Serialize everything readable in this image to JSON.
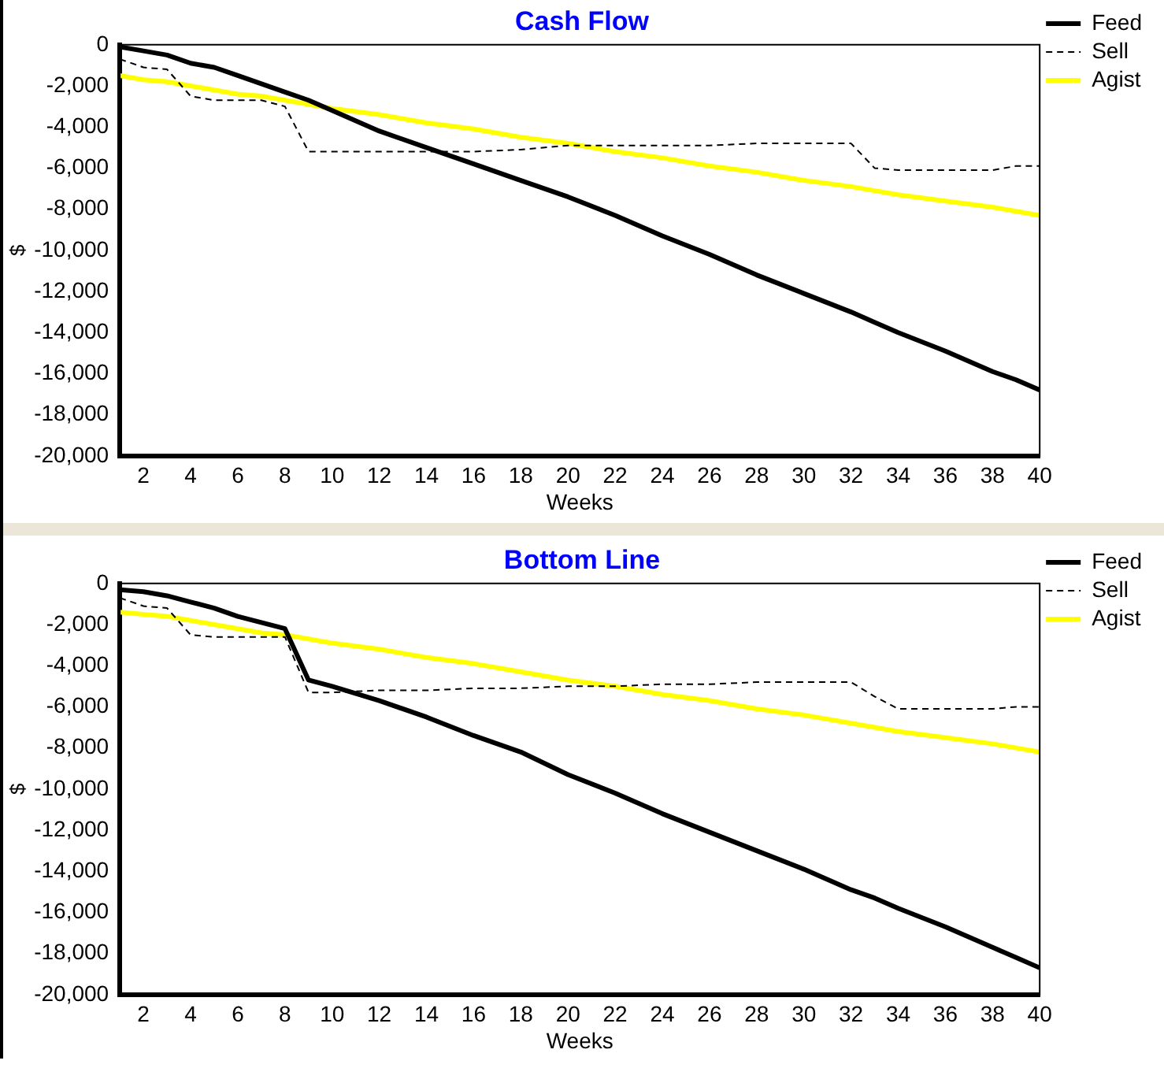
{
  "chart_data": [
    {
      "type": "line",
      "title": "Cash Flow",
      "xlabel": "Weeks",
      "ylabel": "$",
      "x": [
        1,
        2,
        3,
        4,
        5,
        6,
        7,
        8,
        9,
        10,
        12,
        14,
        16,
        18,
        20,
        22,
        24,
        26,
        28,
        30,
        32,
        33,
        34,
        36,
        38,
        39,
        40
      ],
      "xlim": [
        1,
        40
      ],
      "xticks": [
        2,
        4,
        6,
        8,
        10,
        12,
        14,
        16,
        18,
        20,
        22,
        24,
        26,
        28,
        30,
        32,
        34,
        36,
        38,
        40
      ],
      "ylim": [
        -20000,
        0
      ],
      "yticks": [
        {
          "value": -20000,
          "label": "-20,000"
        },
        {
          "value": -18000,
          "label": "-18,000"
        },
        {
          "value": -16000,
          "label": "-16,000"
        },
        {
          "value": -14000,
          "label": "-14,000"
        },
        {
          "value": -12000,
          "label": "-12,000"
        },
        {
          "value": -10000,
          "label": "-10,000"
        },
        {
          "value": -8000,
          "label": "-8,000"
        },
        {
          "value": -6000,
          "label": "-6,000"
        },
        {
          "value": -4000,
          "label": "-4,000"
        },
        {
          "value": -2000,
          "label": "-2,000"
        },
        0
      ],
      "grid": false,
      "legend": "top right",
      "marker": "none",
      "series": [
        {
          "name": "Feed",
          "color": "#000000",
          "line_style": "solid",
          "values": [
            -100,
            -300,
            -500,
            -900,
            -1100,
            -1500,
            -1900,
            -2300,
            -2700,
            -3200,
            -4200,
            -5000,
            -5800,
            -6600,
            -7400,
            -8300,
            -9300,
            -10200,
            -11200,
            -12100,
            -13000,
            -13500,
            -14000,
            -14900,
            -15900,
            -16300,
            -16800
          ]
        },
        {
          "name": "Sell",
          "color": "#000000",
          "line_style": "dashed",
          "values": [
            -700,
            -1100,
            -1200,
            -2500,
            -2700,
            -2700,
            -2700,
            -3000,
            -5200,
            -5200,
            -5200,
            -5200,
            -5200,
            -5100,
            -4900,
            -4900,
            -4900,
            -4900,
            -4800,
            -4800,
            -4800,
            -6000,
            -6100,
            -6100,
            -6100,
            -5900,
            -5900
          ]
        },
        {
          "name": "Agist",
          "color": "#ffff00",
          "line_style": "solid",
          "values": [
            -1500,
            -1700,
            -1800,
            -2000,
            -2200,
            -2400,
            -2500,
            -2700,
            -2900,
            -3100,
            -3400,
            -3800,
            -4100,
            -4500,
            -4800,
            -5200,
            -5500,
            -5900,
            -6200,
            -6600,
            -6900,
            -7100,
            -7300,
            -7600,
            -7900,
            -8100,
            -8300
          ]
        }
      ]
    },
    {
      "type": "line",
      "title": "Bottom Line",
      "xlabel": "Weeks",
      "ylabel": "$",
      "x": [
        1,
        2,
        3,
        4,
        5,
        6,
        7,
        8,
        9,
        10,
        12,
        14,
        16,
        18,
        20,
        22,
        24,
        26,
        28,
        30,
        32,
        33,
        34,
        36,
        38,
        39,
        40
      ],
      "xlim": [
        1,
        40
      ],
      "xticks": [
        2,
        4,
        6,
        8,
        10,
        12,
        14,
        16,
        18,
        20,
        22,
        24,
        26,
        28,
        30,
        32,
        34,
        36,
        38,
        40
      ],
      "ylim": [
        -20000,
        0
      ],
      "yticks": [
        {
          "value": -20000,
          "label": "-20,000"
        },
        {
          "value": -18000,
          "label": "-18,000"
        },
        {
          "value": -16000,
          "label": "-16,000"
        },
        {
          "value": -14000,
          "label": "-14,000"
        },
        {
          "value": -12000,
          "label": "-12,000"
        },
        {
          "value": -10000,
          "label": "-10,000"
        },
        {
          "value": -8000,
          "label": "-8,000"
        },
        {
          "value": -6000,
          "label": "-6,000"
        },
        {
          "value": -4000,
          "label": "-4,000"
        },
        {
          "value": -2000,
          "label": "-2,000"
        },
        0
      ],
      "grid": false,
      "legend": "top right",
      "marker": "none",
      "series": [
        {
          "name": "Feed",
          "color": "#000000",
          "line_style": "solid",
          "values": [
            -300,
            -400,
            -600,
            -900,
            -1200,
            -1600,
            -1900,
            -2200,
            -4700,
            -5000,
            -5700,
            -6500,
            -7400,
            -8200,
            -9300,
            -10200,
            -11200,
            -12100,
            -13000,
            -13900,
            -14900,
            -15300,
            -15800,
            -16700,
            -17700,
            -18200,
            -18700
          ]
        },
        {
          "name": "Sell",
          "color": "#000000",
          "line_style": "dashed",
          "values": [
            -700,
            -1100,
            -1200,
            -2500,
            -2600,
            -2600,
            -2600,
            -2600,
            -5300,
            -5300,
            -5200,
            -5200,
            -5100,
            -5100,
            -5000,
            -5000,
            -4900,
            -4900,
            -4800,
            -4800,
            -4800,
            -5500,
            -6100,
            -6100,
            -6100,
            -6000,
            -6000
          ]
        },
        {
          "name": "Agist",
          "color": "#ffff00",
          "line_style": "solid",
          "values": [
            -1400,
            -1500,
            -1600,
            -1800,
            -2000,
            -2200,
            -2400,
            -2500,
            -2700,
            -2900,
            -3200,
            -3600,
            -3900,
            -4300,
            -4700,
            -5000,
            -5400,
            -5700,
            -6100,
            -6400,
            -6800,
            -7000,
            -7200,
            -7500,
            -7800,
            -8000,
            -8200
          ]
        }
      ]
    }
  ]
}
